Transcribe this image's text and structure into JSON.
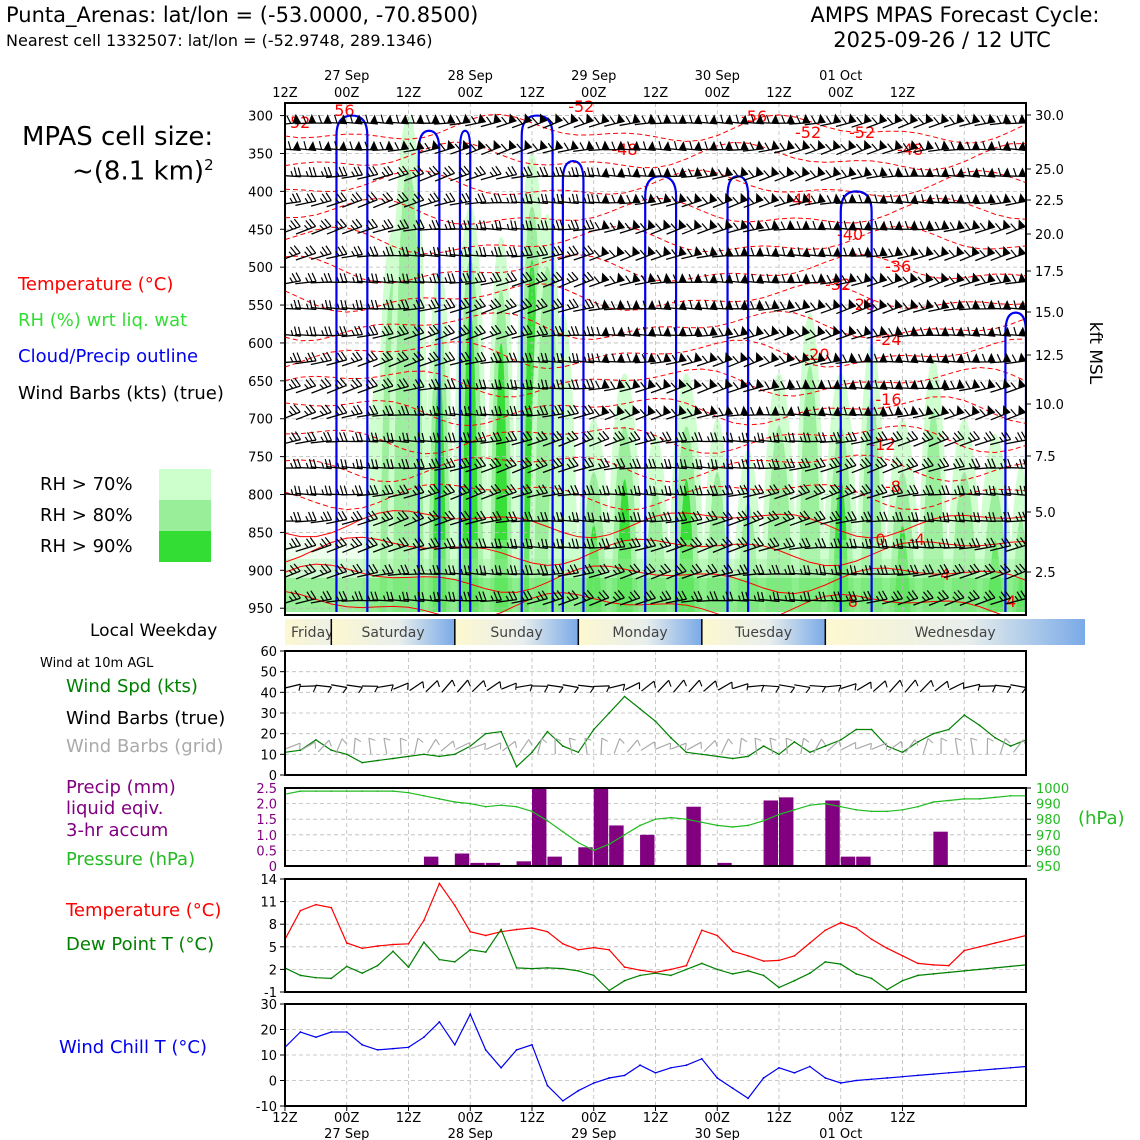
{
  "header": {
    "station": "Punta_Arenas: lat/lon = (-53.0000, -70.8500)",
    "nearest": "Nearest cell 1332507: lat/lon = (-52.9748, 289.1346)",
    "cycle_line1": "AMPS MPAS Forecast Cycle:",
    "cycle_line2": "2025-09-26 / 12 UTC"
  },
  "cell_size": {
    "line1": "MPAS cell size:",
    "line2": "~(8.1 km)",
    "sup": "2"
  },
  "legend": {
    "temperature": "Temperature (°C)",
    "rh": "RH (%) wrt liq. wat",
    "cloud": "Cloud/Precip outline",
    "barbs": "Wind Barbs (kts) (true)",
    "rh70": "RH > 70%",
    "rh80": "RH > 80%",
    "rh90": "RH > 90%"
  },
  "colors": {
    "temp": "#ff0000",
    "rh70": "#ccffcc",
    "rh80": "#99ee99",
    "rh90": "#33dd33",
    "cloud": "#0000ee",
    "precip": "#800080",
    "pressure": "#22bb22",
    "dew": "#008000",
    "chill": "#0000ee"
  },
  "time_axis": {
    "ticks": [
      "12Z",
      "00Z",
      "12Z",
      "00Z",
      "12Z",
      "00Z",
      "12Z",
      "00Z",
      "12Z",
      "00Z",
      "12Z"
    ],
    "dates": [
      "27 Sep",
      "28 Sep",
      "29 Sep",
      "30 Sep",
      "01 Oct"
    ]
  },
  "weekday": {
    "label": "Local Weekday",
    "days": [
      "Friday",
      "Saturday",
      "Sunday",
      "Monday",
      "Tuesday",
      "Wednesday"
    ]
  },
  "sounding": {
    "pressure_ticks": [
      "300",
      "350",
      "400",
      "450",
      "500",
      "550",
      "600",
      "650",
      "700",
      "750",
      "800",
      "850",
      "900",
      "950"
    ],
    "kft_ticks": [
      "30.0",
      "25.0",
      "22.5",
      "20.0",
      "17.5",
      "15.0",
      "12.5",
      "10.0",
      "7.5",
      "5.0",
      "2.5"
    ],
    "kft_label": "kft MSL",
    "temp_labels": [
      "52",
      "56",
      "-52",
      "-48",
      "-56",
      "-52",
      "-52",
      "-48",
      "-44",
      "-40",
      "-36",
      "-32",
      "-28",
      "-24",
      "-20",
      "-16",
      "-12",
      "-8",
      "-4",
      "0",
      "4",
      "8",
      "4"
    ]
  },
  "wind_panel": {
    "caption": "Wind at 10m AGL",
    "spd_label": "Wind Spd (kts)",
    "barb_true_label": "Wind Barbs (true)",
    "barb_grid_label": "Wind Barbs (grid)",
    "yticks": [
      "60",
      "50",
      "40",
      "30",
      "20",
      "10",
      "0"
    ]
  },
  "precip_panel": {
    "label1": "Precip (mm)",
    "label2": "liquid eqiv.",
    "label3": "3-hr accum",
    "pressure_label": "Pressure (hPa)",
    "hpa_label": "(hPa)",
    "left_ticks": [
      "2.5",
      "2.0",
      "1.5",
      "1.0",
      "0.5",
      "0"
    ],
    "right_ticks": [
      "1000",
      "990",
      "980",
      "970",
      "960",
      "950"
    ]
  },
  "temp_panel": {
    "temp_label": "Temperature (°C)",
    "dew_label": "Dew Point T (°C)",
    "yticks": [
      "14",
      "11",
      "8",
      "5",
      "2",
      "-1"
    ]
  },
  "chill_panel": {
    "label": "Wind Chill T (°C)",
    "yticks": [
      "30",
      "20",
      "10",
      "0",
      "-10"
    ]
  },
  "chart_data": [
    {
      "type": "line",
      "title": "Wind Speed at 10m AGL (kts)",
      "x_hours": [
        0,
        3,
        6,
        9,
        12,
        15,
        18,
        21,
        24,
        27,
        30,
        33,
        36,
        39,
        42,
        45,
        48,
        51,
        54,
        57,
        60,
        63,
        66,
        69,
        72,
        75,
        78,
        81,
        84,
        87,
        90,
        93,
        96,
        99,
        102,
        105,
        108,
        111,
        114,
        117,
        120,
        123,
        126,
        129,
        132,
        135,
        138,
        141,
        144
      ],
      "values": [
        11,
        12,
        17,
        12,
        10,
        6,
        7,
        8,
        9,
        10,
        9,
        10,
        14,
        20,
        21,
        4,
        11,
        21,
        14,
        11,
        22,
        30,
        38,
        32,
        26,
        18,
        11,
        10,
        9,
        8,
        9,
        14,
        10,
        16,
        11,
        14,
        17,
        22,
        22,
        14,
        11,
        16,
        20,
        22,
        29,
        24,
        18,
        14,
        17
      ],
      "ylim": [
        0,
        60
      ]
    },
    {
      "type": "bar",
      "title": "Precip (mm) liquid eqiv. 3-hr accum",
      "bars": [
        {
          "x": 27,
          "v": 0.3
        },
        {
          "x": 33,
          "v": 0.4
        },
        {
          "x": 36,
          "v": 0.1
        },
        {
          "x": 39,
          "v": 0.1
        },
        {
          "x": 45,
          "v": 0.15
        },
        {
          "x": 48,
          "v": 2.5
        },
        {
          "x": 51,
          "v": 0.3
        },
        {
          "x": 57,
          "v": 0.6
        },
        {
          "x": 60,
          "v": 2.5
        },
        {
          "x": 63,
          "v": 1.3
        },
        {
          "x": 69,
          "v": 1.0
        },
        {
          "x": 78,
          "v": 1.9
        },
        {
          "x": 84,
          "v": 0.1
        },
        {
          "x": 93,
          "v": 2.1
        },
        {
          "x": 96,
          "v": 2.2
        },
        {
          "x": 105,
          "v": 2.1
        },
        {
          "x": 108,
          "v": 0.3
        },
        {
          "x": 111,
          "v": 0.3
        },
        {
          "x": 126,
          "v": 1.1
        }
      ],
      "ylim": [
        0,
        2.5
      ]
    },
    {
      "type": "line",
      "title": "Pressure (hPa)",
      "x_hours": [
        0,
        3,
        6,
        9,
        12,
        15,
        18,
        21,
        24,
        27,
        30,
        33,
        36,
        39,
        42,
        45,
        48,
        51,
        54,
        57,
        60,
        63,
        66,
        69,
        72,
        75,
        78,
        81,
        84,
        87,
        90,
        93,
        96,
        99,
        102,
        105,
        108,
        111,
        114,
        117,
        120,
        123,
        126,
        129,
        132,
        135,
        138,
        141,
        144
      ],
      "values": [
        996,
        998,
        998,
        998,
        998,
        998,
        998,
        998,
        997,
        995,
        993,
        991,
        990,
        988,
        989,
        988,
        985,
        979,
        972,
        965,
        960,
        964,
        970,
        976,
        980,
        981,
        980,
        978,
        976,
        975,
        976,
        979,
        983,
        986,
        989,
        990,
        988,
        986,
        985,
        985,
        986,
        988,
        991,
        992,
        993,
        993,
        994,
        995,
        995
      ],
      "ylim": [
        950,
        1000
      ]
    },
    {
      "type": "line",
      "title": "Temperature and Dew Point (°C)",
      "x_hours": [
        0,
        3,
        6,
        9,
        12,
        15,
        18,
        21,
        24,
        27,
        30,
        33,
        36,
        39,
        42,
        45,
        48,
        51,
        54,
        57,
        60,
        63,
        66,
        69,
        72,
        75,
        78,
        81,
        84,
        87,
        90,
        93,
        96,
        99,
        102,
        105,
        108,
        111,
        114,
        117,
        120,
        123,
        126,
        129,
        132,
        135,
        138,
        141,
        144
      ],
      "series": [
        {
          "name": "Temperature",
          "values": [
            6,
            9.8,
            10.6,
            10.2,
            5.5,
            4.8,
            5.1,
            5.3,
            5.4,
            8.5,
            13.4,
            10.5,
            7,
            6.5,
            7,
            7.3,
            7.5,
            7,
            5.4,
            4.6,
            4.9,
            4.6,
            2.3,
            1.9,
            1.6,
            2,
            2.5,
            7.2,
            6.5,
            4.4,
            3.8,
            3.1,
            3.2,
            3.8,
            5.5,
            7.2,
            8.2,
            7.5,
            6,
            4.8,
            3.8,
            2.8,
            2.6,
            2.5,
            4.5,
            5,
            5.5,
            6,
            6.5
          ]
        },
        {
          "name": "Dew Point",
          "values": [
            2.2,
            1.2,
            0.9,
            0.8,
            2.4,
            1.5,
            2.5,
            4.4,
            2.3,
            5.6,
            3.3,
            3,
            4.6,
            4.3,
            7.3,
            2.2,
            2.1,
            2.2,
            2.1,
            1.8,
            1.2,
            -0.8,
            0.5,
            1.2,
            1.5,
            1.2,
            2,
            2.8,
            2,
            1.4,
            1.8,
            1.2,
            -0.4,
            0.5,
            1.5,
            3,
            2.7,
            1.4,
            0.8,
            -0.7,
            0.5,
            1.2,
            1.4,
            1.6,
            1.8,
            2,
            2.2,
            2.4,
            2.6
          ]
        }
      ],
      "ylim": [
        -1,
        14
      ]
    },
    {
      "type": "line",
      "title": "Wind Chill T (°C)",
      "x_hours": [
        0,
        3,
        6,
        9,
        12,
        15,
        18,
        21,
        24,
        27,
        30,
        33,
        36,
        39,
        42,
        45,
        48,
        51,
        54,
        57,
        60,
        63,
        66,
        69,
        72,
        75,
        78,
        81,
        84,
        87,
        90,
        93,
        96,
        99,
        102,
        105,
        108,
        111,
        114,
        117,
        120,
        123,
        126,
        129,
        132,
        135,
        138,
        141,
        144
      ],
      "values": [
        13,
        19,
        17,
        19,
        19,
        14,
        12,
        12.5,
        13,
        17,
        23,
        14,
        26,
        12,
        5,
        12,
        14,
        -2,
        -8,
        -4,
        -1,
        1,
        2,
        6,
        3,
        5,
        6,
        8.5,
        1,
        -3,
        -7,
        1,
        5,
        3,
        5.5,
        1,
        -1,
        0,
        0.5,
        1,
        1.5,
        2,
        2.5,
        3,
        3.5,
        4,
        4.5,
        5,
        5.5
      ],
      "ylim": [
        -10,
        30
      ]
    }
  ]
}
